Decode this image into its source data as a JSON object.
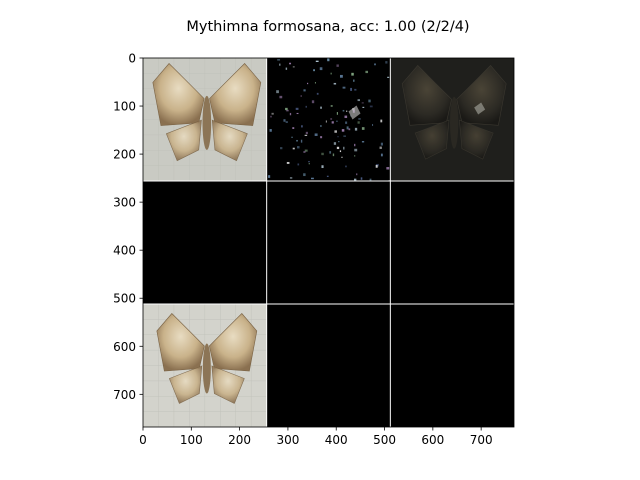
{
  "chart_data": {
    "type": "image",
    "title": "Mythimna formosana, acc: 1.00 (2/2/4)",
    "xlim": [
      0,
      768
    ],
    "ylim": [
      768,
      0
    ],
    "x_ticks": [
      0,
      100,
      200,
      300,
      400,
      500,
      600,
      700
    ],
    "y_ticks": [
      0,
      100,
      200,
      300,
      400,
      500,
      600,
      700
    ],
    "grid": {
      "rows": 3,
      "cols": 3,
      "tile_size": 256,
      "separator_color": "#ffffff",
      "tiles": [
        {
          "row": 0,
          "col": 0,
          "content": "moth photo, light background",
          "icon": "moth-icon",
          "variant": "photo-light"
        },
        {
          "row": 0,
          "col": 1,
          "content": "sparse attribution map on black",
          "icon": "moth-icon",
          "variant": "saliency"
        },
        {
          "row": 0,
          "col": 2,
          "content": "dark masked moth image",
          "icon": "moth-icon",
          "variant": "photo-dark"
        },
        {
          "row": 1,
          "col": 0,
          "content": "black"
        },
        {
          "row": 1,
          "col": 1,
          "content": "black"
        },
        {
          "row": 1,
          "col": 2,
          "content": "black"
        },
        {
          "row": 2,
          "col": 0,
          "content": "moth photo, light background",
          "icon": "moth-icon",
          "variant": "photo-light-2"
        },
        {
          "row": 2,
          "col": 1,
          "content": "black"
        },
        {
          "row": 2,
          "col": 2,
          "content": "black"
        }
      ]
    }
  }
}
